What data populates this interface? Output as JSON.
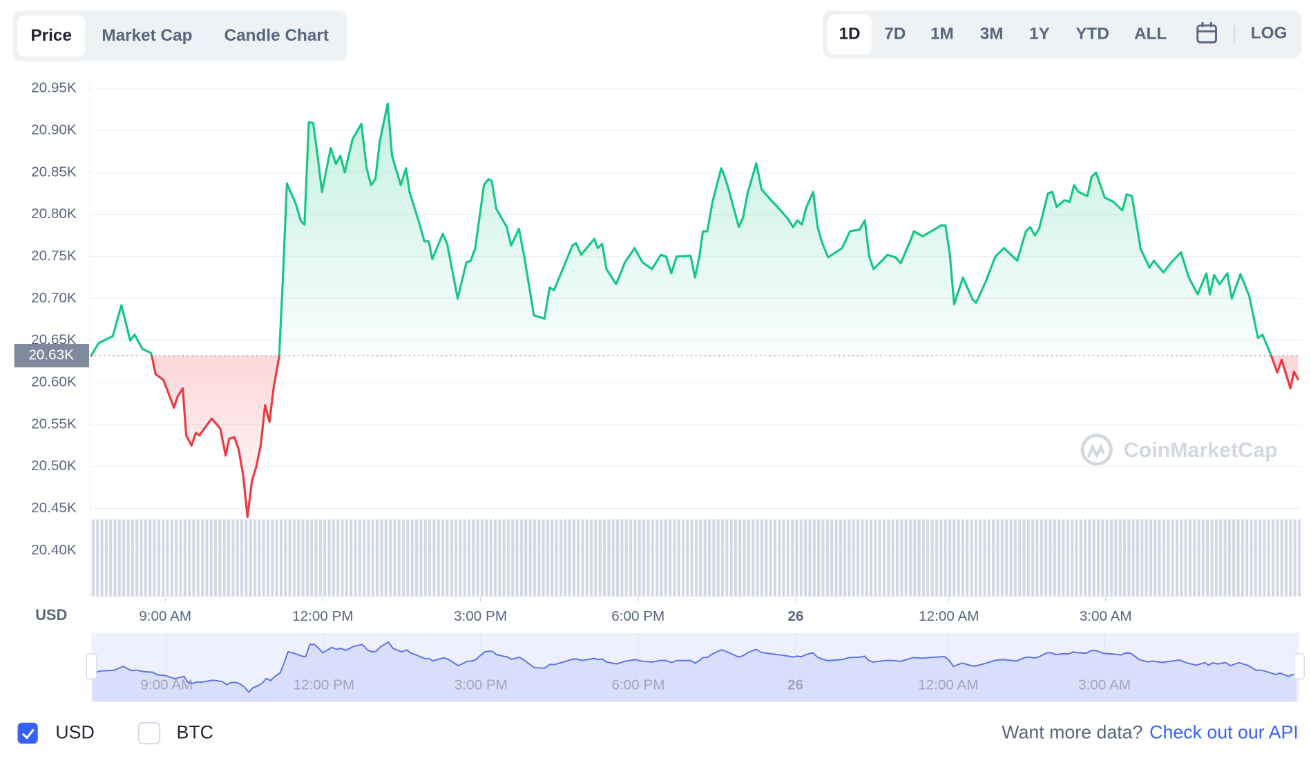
{
  "ui": {
    "tabs": [
      "Price",
      "Market Cap",
      "Candle Chart"
    ],
    "active_tab": 0,
    "ranges": [
      "1D",
      "7D",
      "1M",
      "3M",
      "1Y",
      "YTD",
      "ALL"
    ],
    "active_range": 0,
    "log_button": "LOG",
    "watermark": "CoinMarketCap",
    "currencies": [
      {
        "label": "USD",
        "checked": true
      },
      {
        "label": "BTC",
        "checked": false
      }
    ],
    "more_data": "Want more data?",
    "api_link": "Check out our API"
  },
  "chart_data": {
    "type": "line",
    "ylabel": "USD",
    "color_up": "#16c784",
    "color_down": "#ea3943",
    "grid": true,
    "navigator": true,
    "reference_line": {
      "value": 20632,
      "label": "20.63K"
    },
    "xlim": [
      454,
      1837
    ],
    "xticks": [
      {
        "value": 540,
        "label": "9:00 AM"
      },
      {
        "value": 720,
        "label": "12:00 PM"
      },
      {
        "value": 900,
        "label": "3:00 PM"
      },
      {
        "value": 1080,
        "label": "6:00 PM"
      },
      {
        "value": 1260,
        "label": "26"
      },
      {
        "value": 1435,
        "label": "12:00 AM"
      },
      {
        "value": 1614,
        "label": "3:00 AM"
      }
    ],
    "ylim": [
      20345,
      20965
    ],
    "yticks": [
      {
        "value": 20400,
        "label": "20.40K"
      },
      {
        "value": 20450,
        "label": "20.45K"
      },
      {
        "value": 20500,
        "label": "20.50K"
      },
      {
        "value": 20550,
        "label": "20.55K"
      },
      {
        "value": 20600,
        "label": "20.60K"
      },
      {
        "value": 20650,
        "label": "20.65K"
      },
      {
        "value": 20700,
        "label": "20.70K"
      },
      {
        "value": 20750,
        "label": "20.75K"
      },
      {
        "value": 20800,
        "label": "20.80K"
      },
      {
        "value": 20850,
        "label": "20.85K"
      },
      {
        "value": 20900,
        "label": "20.90K"
      },
      {
        "value": 20950,
        "label": "20.95K"
      }
    ],
    "x": [
      455,
      464,
      474,
      480,
      490,
      500,
      505,
      514,
      524,
      529,
      538,
      550,
      554,
      560,
      564,
      570,
      575,
      579,
      593,
      603,
      609,
      613,
      619,
      624,
      629,
      634,
      639,
      644,
      649,
      654,
      659,
      664,
      670,
      674,
      679,
      689,
      695,
      699,
      704,
      709,
      714,
      719,
      729,
      735,
      740,
      745,
      754,
      764,
      770,
      775,
      780,
      785,
      794,
      799,
      809,
      815,
      819,
      830,
      836,
      841,
      845,
      857,
      862,
      874,
      884,
      889,
      894,
      904,
      909,
      913,
      918,
      930,
      935,
      944,
      950,
      961,
      973,
      979,
      984,
      994,
      1005,
      1009,
      1015,
      1030,
      1034,
      1039,
      1044,
      1055,
      1065,
      1076,
      1085,
      1096,
      1106,
      1112,
      1118,
      1124,
      1140,
      1145,
      1150,
      1154,
      1159,
      1165,
      1175,
      1179,
      1184,
      1195,
      1200,
      1205,
      1215,
      1221,
      1231,
      1241,
      1251,
      1257,
      1262,
      1267,
      1272,
      1280,
      1285,
      1290,
      1297,
      1313,
      1322,
      1333,
      1339,
      1344,
      1349,
      1365,
      1374,
      1380,
      1391,
      1395,
      1405,
      1426,
      1431,
      1436,
      1441,
      1451,
      1462,
      1466,
      1477,
      1488,
      1498,
      1513,
      1523,
      1528,
      1533,
      1538,
      1548,
      1553,
      1558,
      1567,
      1573,
      1578,
      1583,
      1593,
      1598,
      1603,
      1613,
      1623,
      1633,
      1638,
      1644,
      1654,
      1664,
      1669,
      1680,
      1689,
      1700,
      1709,
      1719,
      1729,
      1733,
      1738,
      1744,
      1753,
      1758,
      1768,
      1778,
      1788,
      1793,
      1802,
      1810,
      1815,
      1825,
      1829,
      1834
    ],
    "values": [
      20631,
      20647,
      20652,
      20655,
      20692,
      20650,
      20657,
      20640,
      20635,
      20610,
      20603,
      20570,
      20583,
      20593,
      20537,
      20525,
      20540,
      20537,
      20557,
      20545,
      20513,
      20533,
      20535,
      20520,
      20490,
      20440,
      20483,
      20500,
      20525,
      20573,
      20553,
      20595,
      20630,
      20715,
      20837,
      20813,
      20792,
      20788,
      20910,
      20909,
      20870,
      20827,
      20879,
      20860,
      20870,
      20850,
      20890,
      20908,
      20855,
      20835,
      20842,
      20887,
      20932,
      20870,
      20835,
      20855,
      20827,
      20790,
      20768,
      20768,
      20747,
      20777,
      20765,
      20700,
      20743,
      20745,
      20760,
      20835,
      20842,
      20840,
      20807,
      20785,
      20763,
      20783,
      20750,
      20680,
      20676,
      20713,
      20710,
      20735,
      20763,
      20766,
      20752,
      20771,
      20760,
      20765,
      20735,
      20717,
      20743,
      20760,
      20743,
      20735,
      20752,
      20750,
      20730,
      20750,
      20751,
      20725,
      20750,
      20780,
      20780,
      20815,
      20855,
      20845,
      20828,
      20785,
      20797,
      20825,
      20861,
      20830,
      20818,
      20807,
      20795,
      20785,
      20793,
      20788,
      20808,
      20827,
      20785,
      20767,
      20749,
      20760,
      20780,
      20782,
      20793,
      20750,
      20735,
      20752,
      20749,
      20742,
      20769,
      20780,
      20774,
      20787,
      20787,
      20753,
      20693,
      20725,
      20699,
      20695,
      20720,
      20750,
      20760,
      20745,
      20780,
      20785,
      20775,
      20783,
      20825,
      20827,
      20809,
      20817,
      20815,
      20835,
      20827,
      20822,
      20845,
      20850,
      20820,
      20815,
      20805,
      20824,
      20822,
      20759,
      20737,
      20745,
      20731,
      20743,
      20755,
      20725,
      20705,
      20730,
      20705,
      20728,
      20717,
      20730,
      20700,
      20729,
      20703,
      20653,
      20657,
      20635,
      20612,
      20627,
      20593,
      20613,
      20603
    ]
  }
}
